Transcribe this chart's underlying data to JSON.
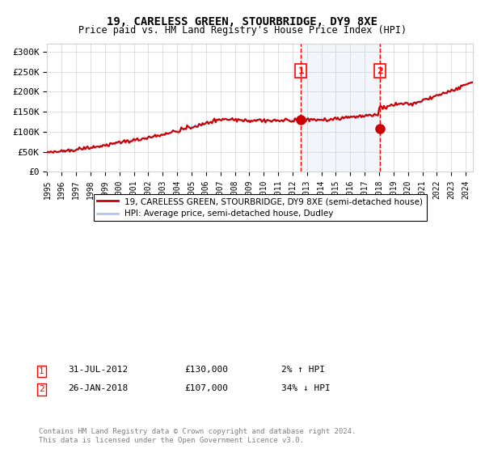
{
  "title": "19, CARELESS GREEN, STOURBRIDGE, DY9 8XE",
  "subtitle": "Price paid vs. HM Land Registry's House Price Index (HPI)",
  "legend_line1": "19, CARELESS GREEN, STOURBRIDGE, DY9 8XE (semi-detached house)",
  "legend_line2": "HPI: Average price, semi-detached house, Dudley",
  "annotation1_label": "1",
  "annotation1_date": "31-JUL-2012",
  "annotation1_price": "£130,000",
  "annotation1_hpi": "2% ↑ HPI",
  "annotation1_year": 2012.58,
  "annotation1_value": 130000,
  "annotation2_label": "2",
  "annotation2_date": "26-JAN-2018",
  "annotation2_price": "£107,000",
  "annotation2_hpi": "34% ↓ HPI",
  "annotation2_year": 2018.07,
  "annotation2_value": 107000,
  "footer": "Contains HM Land Registry data © Crown copyright and database right 2024.\nThis data is licensed under the Open Government Licence v3.0.",
  "ylim": [
    0,
    320000
  ],
  "xlim_start": 1995,
  "xlim_end": 2024.5,
  "shaded_region_start": 2012.58,
  "shaded_region_end": 2018.07,
  "hpi_color": "#aec6e8",
  "price_paid_color": "#cc0000",
  "background_color": "#ffffff"
}
